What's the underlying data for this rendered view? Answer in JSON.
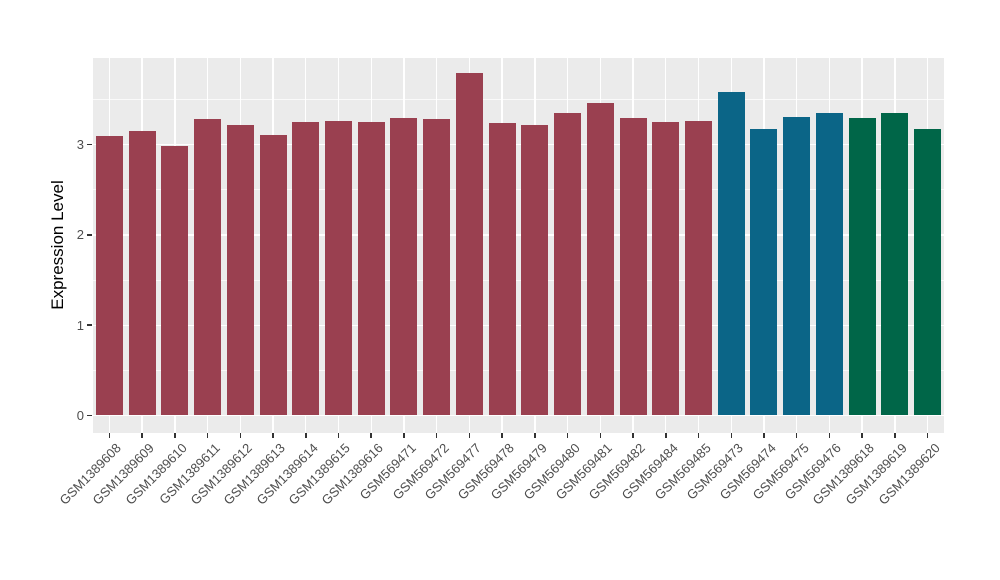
{
  "chart_data": {
    "type": "bar",
    "title": "",
    "xlabel": "",
    "ylabel": "Expression Level",
    "ylim": [
      -0.19,
      3.96
    ],
    "yticks": [
      0,
      1,
      2,
      3
    ],
    "ytick_labels": [
      "0",
      "1",
      "2",
      "3"
    ],
    "minor_yticks": [
      0.5,
      1.5,
      2.5,
      3.5
    ],
    "grid": "white major and minor gridlines on grey panel, legend none",
    "legend_position": "none",
    "panel_background": "#EBEBEB",
    "gridline_color": "#FFFFFF",
    "axis_text_color": "#4D4D4D",
    "categories": [
      "GSM1389608",
      "GSM1389609",
      "GSM1389610",
      "GSM1389611",
      "GSM1389612",
      "GSM1389613",
      "GSM1389614",
      "GSM1389615",
      "GSM1389616",
      "GSM569471",
      "GSM569472",
      "GSM569477",
      "GSM569478",
      "GSM569479",
      "GSM569480",
      "GSM569481",
      "GSM569482",
      "GSM569484",
      "GSM569485",
      "GSM569473",
      "GSM569474",
      "GSM569475",
      "GSM569476",
      "GSM1389618",
      "GSM1389619",
      "GSM1389620"
    ],
    "values": [
      3.1,
      3.15,
      2.98,
      3.28,
      3.22,
      3.11,
      3.25,
      3.26,
      3.25,
      3.3,
      3.28,
      3.79,
      3.24,
      3.22,
      3.35,
      3.46,
      3.3,
      3.25,
      3.26,
      3.58,
      3.17,
      3.31,
      3.35,
      3.29,
      3.35,
      3.17
    ],
    "bar_groups": [
      "maroon",
      "maroon",
      "maroon",
      "maroon",
      "maroon",
      "maroon",
      "maroon",
      "maroon",
      "maroon",
      "maroon",
      "maroon",
      "maroon",
      "maroon",
      "maroon",
      "maroon",
      "maroon",
      "maroon",
      "maroon",
      "maroon",
      "teal",
      "teal",
      "teal",
      "teal",
      "green",
      "green",
      "green"
    ],
    "group_colors": {
      "maroon": "#9A4050",
      "teal": "#0B6587",
      "green": "#006648"
    }
  }
}
